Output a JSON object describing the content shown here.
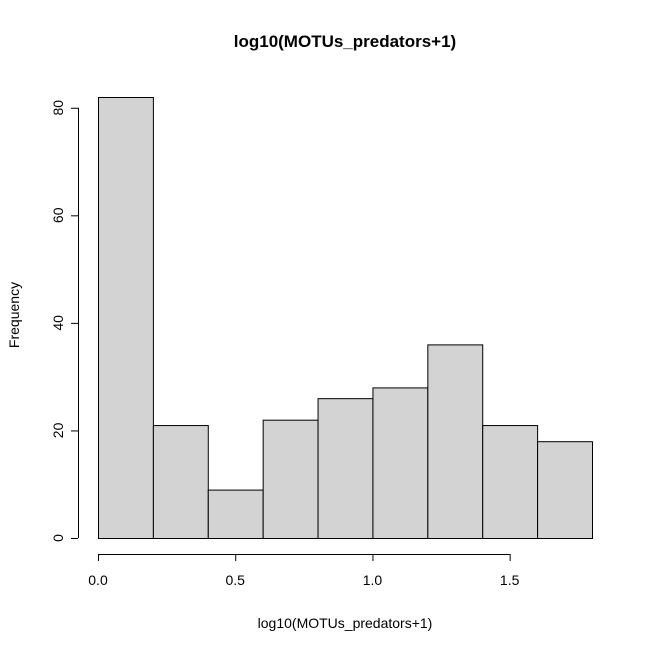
{
  "chart_data": {
    "type": "bar",
    "title": "log10(MOTUs_predators+1)",
    "xlabel": "log10(MOTUs_predators+1)",
    "ylabel": "Frequency",
    "bins": [
      {
        "start": 0.0,
        "end": 0.2,
        "count": 82
      },
      {
        "start": 0.2,
        "end": 0.4,
        "count": 21
      },
      {
        "start": 0.4,
        "end": 0.6,
        "count": 9
      },
      {
        "start": 0.6,
        "end": 0.8,
        "count": 22
      },
      {
        "start": 0.8,
        "end": 1.0,
        "count": 26
      },
      {
        "start": 1.0,
        "end": 1.2,
        "count": 28
      },
      {
        "start": 1.2,
        "end": 1.4,
        "count": 36
      },
      {
        "start": 1.4,
        "end": 1.6,
        "count": 21
      },
      {
        "start": 1.6,
        "end": 1.8,
        "count": 18
      }
    ],
    "x_ticks": [
      {
        "value": 0.0,
        "label": "0.0"
      },
      {
        "value": 0.5,
        "label": "0.5"
      },
      {
        "value": 1.0,
        "label": "1.0"
      },
      {
        "value": 1.5,
        "label": "1.5"
      }
    ],
    "y_ticks": [
      {
        "value": 0,
        "label": "0"
      },
      {
        "value": 20,
        "label": "20"
      },
      {
        "value": 40,
        "label": "40"
      },
      {
        "value": 60,
        "label": "60"
      },
      {
        "value": 80,
        "label": "80"
      }
    ],
    "xlim": [
      0.0,
      1.8
    ],
    "ylim": [
      0,
      82
    ],
    "bar_fill": "#d3d3d3",
    "bar_stroke": "#000000",
    "grid": false,
    "legend": "none"
  }
}
